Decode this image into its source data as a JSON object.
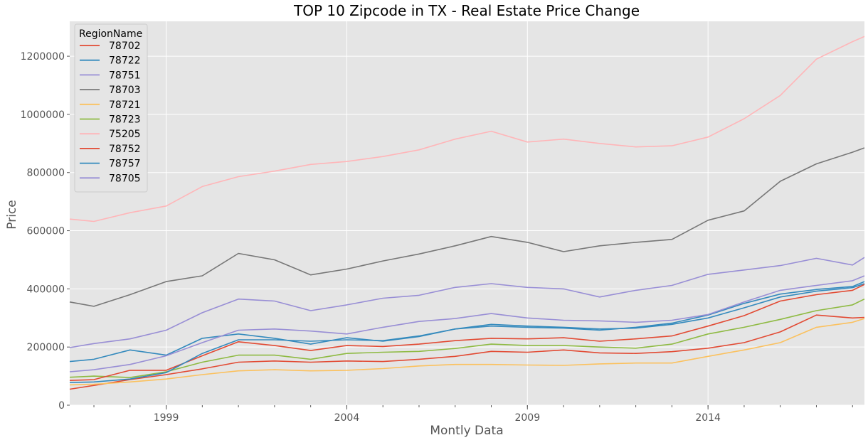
{
  "chart_data": {
    "type": "line",
    "title": "TOP 10 Zipcode in TX - Real Estate Price Change",
    "xlabel": "Montly Data",
    "ylabel": "Price",
    "xlim": [
      1996.33,
      2018.33
    ],
    "ylim": [
      0,
      1320000
    ],
    "x_ticks": [
      {
        "value": 1999,
        "label": "1999"
      },
      {
        "value": 2004,
        "label": "2004"
      },
      {
        "value": 2009,
        "label": "2009"
      },
      {
        "value": 2014,
        "label": "2014"
      }
    ],
    "y_ticks": [
      {
        "value": 0,
        "label": "0"
      },
      {
        "value": 200000,
        "label": "200000"
      },
      {
        "value": 400000,
        "label": "400000"
      },
      {
        "value": 600000,
        "label": "600000"
      },
      {
        "value": 800000,
        "label": "800000"
      },
      {
        "value": 1000000,
        "label": "1000000"
      },
      {
        "value": 1200000,
        "label": "1200000"
      }
    ],
    "grid": true,
    "legend": {
      "title": "RegionName",
      "placement": "top-left"
    },
    "x": [
      1996.33,
      1997,
      1998,
      1999,
      2000,
      2001,
      2002,
      2003,
      2004,
      2005,
      2006,
      2007,
      2008,
      2009,
      2010,
      2011,
      2012,
      2013,
      2014,
      2015,
      2016,
      2017,
      2018,
      2018.33
    ],
    "series": [
      {
        "name": "78702",
        "color": "#E24A33",
        "values": [
          55000,
          68000,
          88000,
          105000,
          125000,
          148000,
          152000,
          148000,
          152000,
          150000,
          158000,
          168000,
          185000,
          182000,
          190000,
          180000,
          178000,
          184000,
          196000,
          215000,
          252000,
          310000,
          300000,
          302000
        ]
      },
      {
        "name": "78722",
        "color": "#348ABD",
        "values": [
          150000,
          158000,
          190000,
          172000,
          230000,
          245000,
          230000,
          210000,
          232000,
          220000,
          236000,
          262000,
          278000,
          272000,
          268000,
          262000,
          265000,
          278000,
          300000,
          335000,
          372000,
          392000,
          404000,
          418000
        ]
      },
      {
        "name": "78751",
        "color": "#988ED5",
        "values": [
          198000,
          212000,
          228000,
          258000,
          318000,
          365000,
          358000,
          325000,
          345000,
          368000,
          378000,
          405000,
          418000,
          405000,
          400000,
          372000,
          395000,
          412000,
          450000,
          465000,
          480000,
          505000,
          482000,
          508000
        ]
      },
      {
        "name": "78703",
        "color": "#777777",
        "values": [
          355000,
          340000,
          380000,
          425000,
          445000,
          522000,
          500000,
          448000,
          468000,
          496000,
          520000,
          548000,
          580000,
          560000,
          528000,
          548000,
          560000,
          570000,
          636000,
          668000,
          770000,
          830000,
          870000,
          885000
        ]
      },
      {
        "name": "78721",
        "color": "#FBC15E",
        "values": [
          70000,
          72000,
          80000,
          90000,
          105000,
          118000,
          122000,
          118000,
          120000,
          126000,
          135000,
          140000,
          140000,
          138000,
          137000,
          142000,
          145000,
          145000,
          168000,
          190000,
          215000,
          268000,
          285000,
          298000
        ]
      },
      {
        "name": "78723",
        "color": "#8EBA42",
        "values": [
          96000,
          100000,
          95000,
          115000,
          148000,
          172000,
          172000,
          158000,
          178000,
          182000,
          185000,
          195000,
          210000,
          205000,
          205000,
          200000,
          196000,
          210000,
          245000,
          268000,
          295000,
          325000,
          345000,
          365000
        ]
      },
      {
        "name": "75205",
        "color": "#FFB5B8",
        "values": [
          640000,
          632000,
          662000,
          685000,
          752000,
          786000,
          805000,
          828000,
          838000,
          855000,
          878000,
          915000,
          942000,
          905000,
          915000,
          900000,
          888000,
          892000,
          922000,
          985000,
          1065000,
          1190000,
          1250000,
          1268000
        ]
      },
      {
        "name": "78752",
        "color": "#E24A33",
        "values": [
          85000,
          88000,
          120000,
          120000,
          170000,
          218000,
          205000,
          188000,
          205000,
          202000,
          210000,
          222000,
          230000,
          228000,
          232000,
          220000,
          228000,
          238000,
          272000,
          308000,
          358000,
          380000,
          395000,
          415000
        ]
      },
      {
        "name": "78757",
        "color": "#348ABD",
        "values": [
          78000,
          80000,
          90000,
          112000,
          178000,
          225000,
          225000,
          220000,
          225000,
          222000,
          238000,
          262000,
          272000,
          268000,
          265000,
          258000,
          268000,
          282000,
          310000,
          350000,
          382000,
          398000,
          408000,
          425000
        ]
      },
      {
        "name": "78705",
        "color": "#988ED5",
        "values": [
          115000,
          122000,
          140000,
          170000,
          215000,
          258000,
          262000,
          255000,
          245000,
          268000,
          288000,
          298000,
          315000,
          300000,
          292000,
          290000,
          285000,
          292000,
          312000,
          355000,
          395000,
          412000,
          428000,
          445000
        ]
      }
    ]
  }
}
